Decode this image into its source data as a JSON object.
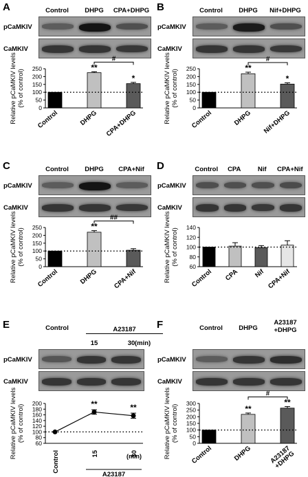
{
  "panels": [
    {
      "id": "A",
      "lanes": [
        "Control",
        "DHPG",
        "CPA+DHPG"
      ],
      "rows": [
        "pCaMKIV",
        "CaMKIV"
      ],
      "top_band_intensity": [
        0.45,
        1.0,
        0.55
      ],
      "bottom_band_intensity": [
        0.75,
        0.75,
        0.72
      ],
      "chart_data": {
        "type": "bar",
        "categories": [
          "Control",
          "DHPG",
          "CPA+DHPG"
        ],
        "values": [
          100,
          225,
          155
        ],
        "errors": [
          0,
          6,
          8
        ],
        "bar_colors": [
          "#000000",
          "#c0c0c0",
          "#5a5a5a"
        ],
        "ylabel": "Relative pCaMKIV levels\n(% of control)",
        "ylim": [
          0,
          250
        ],
        "yticks": [
          "0",
          "50",
          "100",
          "150",
          "200",
          "250"
        ],
        "baseline": 100,
        "star_labels": [
          "",
          "**",
          "*"
        ],
        "comparison": {
          "from": 1,
          "to": 2,
          "label": "#"
        }
      }
    },
    {
      "id": "B",
      "lanes": [
        "Control",
        "DHPG",
        "Nif+DHPG"
      ],
      "rows": [
        "pCaMKIV",
        "CaMKIV"
      ],
      "top_band_intensity": [
        0.45,
        0.95,
        0.55
      ],
      "bottom_band_intensity": [
        0.75,
        0.75,
        0.72
      ],
      "chart_data": {
        "type": "bar",
        "categories": [
          "Control",
          "DHPG",
          "Nif+DHPG"
        ],
        "values": [
          100,
          218,
          152
        ],
        "errors": [
          0,
          10,
          8
        ],
        "bar_colors": [
          "#000000",
          "#c0c0c0",
          "#5a5a5a"
        ],
        "ylabel": "Relative pCaMKIV levels\n(% of control)",
        "ylim": [
          0,
          250
        ],
        "yticks": [
          "0",
          "50",
          "100",
          "150",
          "200",
          "250"
        ],
        "baseline": 100,
        "star_labels": [
          "",
          "**",
          "*"
        ],
        "comparison": {
          "from": 1,
          "to": 2,
          "label": "#"
        }
      }
    },
    {
      "id": "C",
      "lanes": [
        "Control",
        "DHPG",
        "CPA+Nif"
      ],
      "rows": [
        "pCaMKIV",
        "CaMKIV"
      ],
      "top_band_intensity": [
        0.45,
        1.0,
        0.45
      ],
      "bottom_band_intensity": [
        0.75,
        0.75,
        0.72
      ],
      "chart_data": {
        "type": "bar",
        "categories": [
          "Control",
          "DHPG",
          "CPA+Nif"
        ],
        "values": [
          100,
          220,
          105
        ],
        "errors": [
          0,
          10,
          10
        ],
        "bar_colors": [
          "#000000",
          "#c0c0c0",
          "#5a5a5a"
        ],
        "ylabel": "Relative pCaMKIV levels\n(% of control)",
        "ylim": [
          0,
          250
        ],
        "yticks": [
          "0",
          "50",
          "100",
          "150",
          "200",
          "250"
        ],
        "baseline": 100,
        "star_labels": [
          "",
          "**",
          ""
        ],
        "comparison": {
          "from": 1,
          "to": 2,
          "label": "##"
        }
      }
    },
    {
      "id": "D",
      "lanes": [
        "Control",
        "CPA",
        "Nif",
        "CPA+Nif"
      ],
      "rows": [
        "pCaMKIV",
        "CaMKIV"
      ],
      "top_band_intensity": [
        0.55,
        0.55,
        0.55,
        0.58
      ],
      "bottom_band_intensity": [
        0.75,
        0.75,
        0.72,
        0.75
      ],
      "chart_data": {
        "type": "bar",
        "categories": [
          "Control",
          "CPA",
          "Nif",
          "CPA+Nif"
        ],
        "values": [
          100,
          102,
          99,
          104
        ],
        "errors": [
          0,
          7,
          4,
          9
        ],
        "bar_colors": [
          "#000000",
          "#c0c0c0",
          "#5a5a5a",
          "#e6e6e6"
        ],
        "ylabel": "Relative pCaMKIV levels\n(% of control)",
        "ylim": [
          60,
          140
        ],
        "yticks": [
          "60",
          "80",
          "100",
          "120",
          "140"
        ],
        "baseline": 100,
        "star_labels": [
          "",
          "",
          "",
          ""
        ]
      }
    },
    {
      "id": "E",
      "lanes": [
        "Control",
        "15",
        "30"
      ],
      "lane_header": "A23187",
      "lane_unit": "(min)",
      "rows": [
        "pCaMKIV",
        "CaMKIV"
      ],
      "top_band_intensity": [
        0.5,
        0.75,
        0.75
      ],
      "bottom_band_intensity": [
        0.75,
        0.75,
        0.75
      ],
      "chart_data": {
        "type": "line",
        "x_labels": [
          "Control",
          "15",
          "30"
        ],
        "x_unit": "(min)",
        "x_group_label": "A23187",
        "values": [
          100,
          170,
          157
        ],
        "errors": [
          0,
          8,
          9
        ],
        "ylabel": "Relative pCaMKIV levels\n(% of control)",
        "ylim": [
          60,
          200
        ],
        "yticks": [
          "60",
          "80",
          "100",
          "120",
          "140",
          "160",
          "180",
          "200"
        ],
        "baseline": 100,
        "star_labels": [
          "",
          "**",
          "**"
        ]
      }
    },
    {
      "id": "F",
      "lanes": [
        "Control",
        "DHPG",
        "A23187\n+DHPG"
      ],
      "rows": [
        "pCaMKIV",
        "CaMKIV"
      ],
      "top_band_intensity": [
        0.45,
        0.75,
        0.8
      ],
      "bottom_band_intensity": [
        0.75,
        0.75,
        0.75
      ],
      "chart_data": {
        "type": "bar",
        "categories": [
          "Control",
          "DHPG",
          "A23187\n+DHPG"
        ],
        "values": [
          100,
          218,
          265
        ],
        "errors": [
          0,
          10,
          12
        ],
        "bar_colors": [
          "#000000",
          "#c0c0c0",
          "#5a5a5a"
        ],
        "ylabel": "Relative pCaMKIV levels\n(% of control)",
        "ylim": [
          0,
          300
        ],
        "yticks": [
          "0",
          "50",
          "100",
          "150",
          "200",
          "250",
          "300"
        ],
        "baseline": 100,
        "star_labels": [
          "",
          "**",
          "**"
        ],
        "comparison": {
          "from": 1,
          "to": 2,
          "label": "#"
        }
      }
    }
  ]
}
